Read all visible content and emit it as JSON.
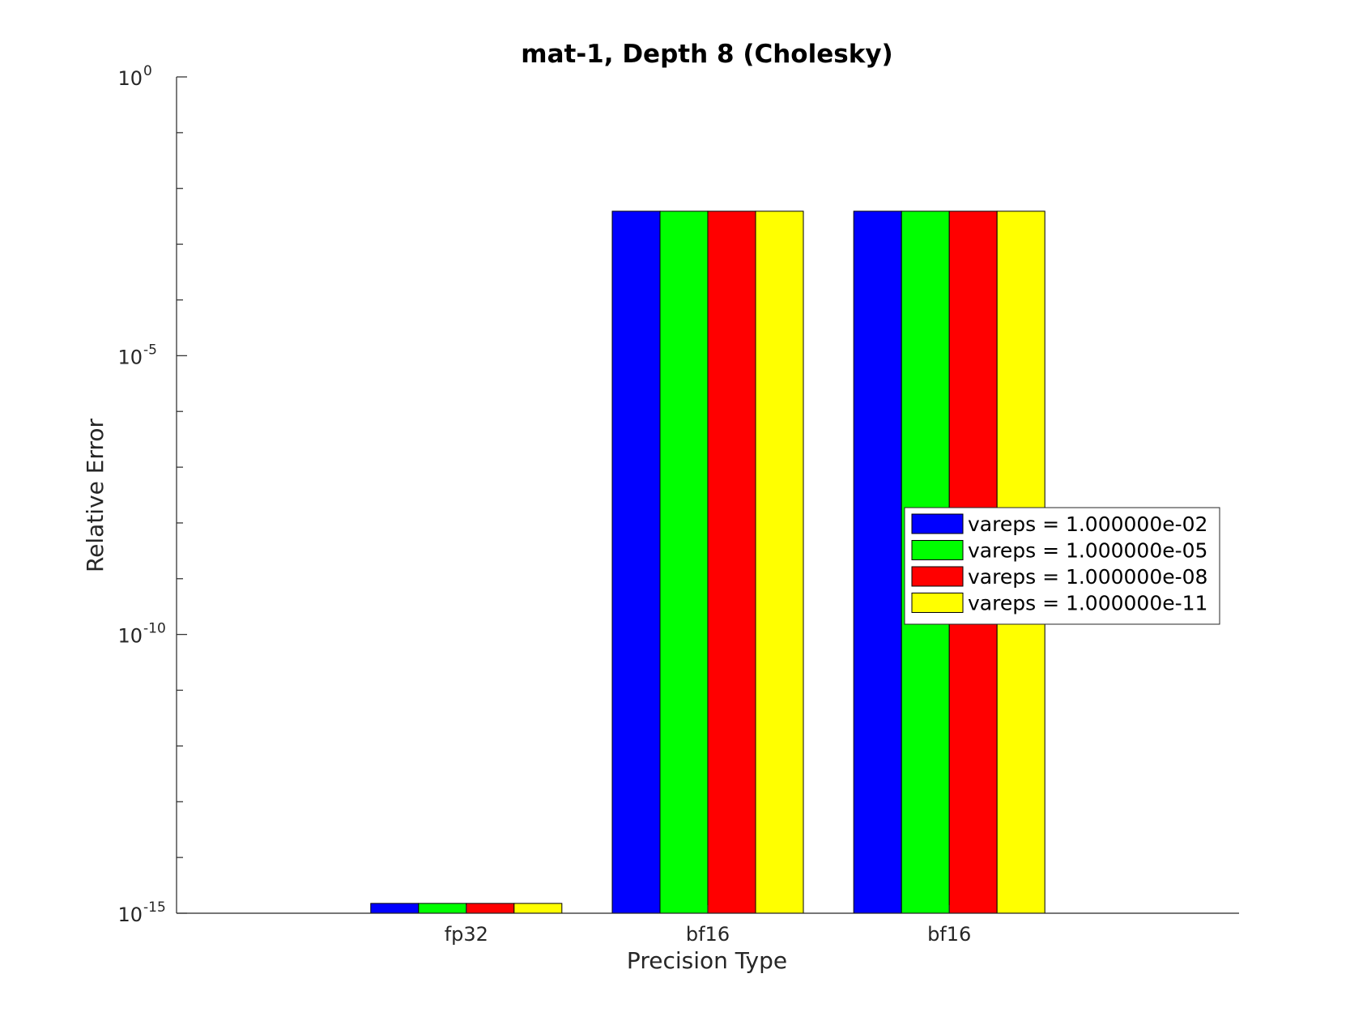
{
  "chart_data": {
    "type": "bar",
    "title": "mat-1, Depth 8 (Cholesky)",
    "xlabel": "Precision Type",
    "ylabel": "Relative Error",
    "y_scale": "log",
    "ylim": [
      1e-15,
      1
    ],
    "yticks": [
      {
        "value": 1,
        "base": "10",
        "exp": "0"
      },
      {
        "value": 1e-05,
        "base": "10",
        "exp": "-5"
      },
      {
        "value": 1e-10,
        "base": "10",
        "exp": "-10"
      },
      {
        "value": 1e-15,
        "base": "10",
        "exp": "-15"
      }
    ],
    "categories": [
      "fp32",
      "bf16",
      "bf16"
    ],
    "series": [
      {
        "name": "vareps = 1.000000e-02",
        "color": "#0000ff",
        "values": [
          1.5e-15,
          0.0039,
          0.0039
        ]
      },
      {
        "name": "vareps = 1.000000e-05",
        "color": "#00ff00",
        "values": [
          1.5e-15,
          0.0039,
          0.0039
        ]
      },
      {
        "name": "vareps = 1.000000e-08",
        "color": "#ff0000",
        "values": [
          1.5e-15,
          0.0039,
          0.0039
        ]
      },
      {
        "name": "vareps = 1.000000e-11",
        "color": "#ffff00",
        "values": [
          1.5e-15,
          0.0039,
          0.0039
        ]
      }
    ],
    "grid": false,
    "legend_position": "right"
  }
}
